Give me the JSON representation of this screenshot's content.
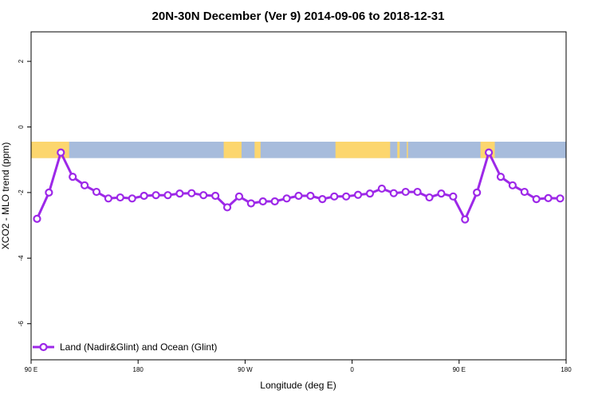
{
  "chart_data": {
    "type": "line",
    "title": "20N-30N December (Ver 9)   2014-09-06 to 2018-12-31",
    "xlabel": "Longitude (deg E)",
    "ylabel": "XCO2 - MLO trend (ppm)",
    "xlim": [
      90,
      540
    ],
    "ylim": [
      -7.1,
      2.9
    ],
    "x_ticks": [
      {
        "value": 90,
        "label": "90 E"
      },
      {
        "value": 180,
        "label": "180"
      },
      {
        "value": 270,
        "label": "90 W"
      },
      {
        "value": 360,
        "label": "0"
      },
      {
        "value": 450,
        "label": "90 E"
      },
      {
        "value": 540,
        "label": "180"
      }
    ],
    "y_ticks": [
      {
        "value": 2,
        "label": "2"
      },
      {
        "value": 0,
        "label": "0"
      },
      {
        "value": -2,
        "label": "-2"
      },
      {
        "value": -4,
        "label": "-4"
      },
      {
        "value": -6,
        "label": "-6"
      }
    ],
    "land_strip": {
      "y_range": [
        -0.95,
        -0.45
      ],
      "ocean_color": "#a7bcdc",
      "land_color": "#fcd66e",
      "land_intervals": [
        [
          90,
          122
        ],
        [
          252,
          267
        ],
        [
          278,
          283
        ],
        [
          346,
          392
        ],
        [
          398,
          400
        ],
        [
          406,
          407
        ],
        [
          468,
          480
        ]
      ]
    },
    "series": [
      {
        "name": "Land (Nadir&Glint) and Ocean (Glint)",
        "color": "#9d28e8",
        "x": [
          95,
          105,
          115,
          125,
          135,
          145,
          155,
          165,
          175,
          185,
          195,
          205,
          215,
          225,
          235,
          245,
          255,
          265,
          275,
          285,
          295,
          305,
          315,
          325,
          335,
          345,
          355,
          365,
          375,
          385,
          395,
          405,
          415,
          425,
          435,
          445,
          455,
          465,
          475,
          485,
          495,
          505,
          515,
          525,
          535
        ],
        "y": [
          -2.8,
          -2.0,
          -0.78,
          -1.52,
          -1.78,
          -1.98,
          -2.18,
          -2.15,
          -2.18,
          -2.1,
          -2.08,
          -2.08,
          -2.03,
          -2.02,
          -2.08,
          -2.1,
          -2.45,
          -2.12,
          -2.33,
          -2.27,
          -2.27,
          -2.18,
          -2.1,
          -2.1,
          -2.2,
          -2.12,
          -2.12,
          -2.07,
          -2.03,
          -1.88,
          -2.02,
          -1.98,
          -1.98,
          -2.15,
          -2.03,
          -2.12,
          -2.82,
          -2.0,
          -0.78,
          -1.52,
          -1.78,
          -1.98,
          -2.2,
          -2.17,
          -2.18
        ]
      }
    ],
    "legend_position": "bottom-left"
  }
}
